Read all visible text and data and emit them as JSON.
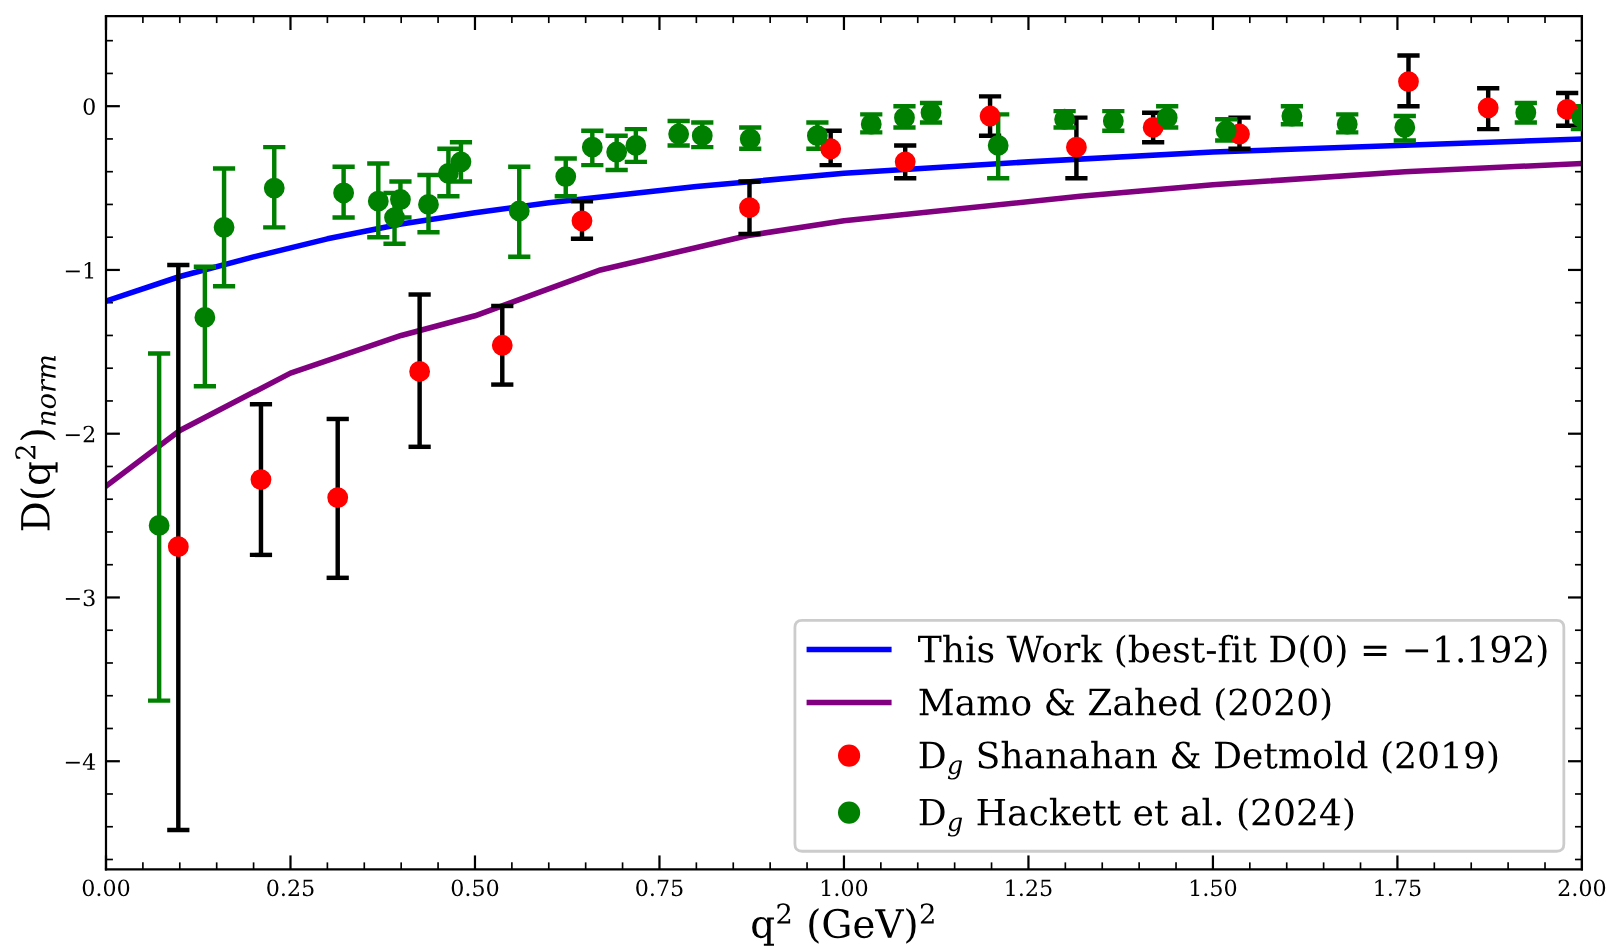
{
  "chart_data": {
    "type": "scatter",
    "xlabel": "q$^{2}$ (GeV)$^{2}$",
    "ylabel": "D(q$^{2}$)$_{norm}$",
    "xlim": [
      0,
      2
    ],
    "ylim": [
      -4.66,
      0.55
    ],
    "xticks": [
      {
        "value": 0,
        "label": "0.00"
      },
      {
        "value": 0.25,
        "label": "0.25"
      },
      {
        "value": 0.5,
        "label": "0.50"
      },
      {
        "value": 0.75,
        "label": "0.75"
      },
      {
        "value": 1,
        "label": "1.00"
      },
      {
        "value": 1.25,
        "label": "1.25"
      },
      {
        "value": 1.5,
        "label": "1.50"
      },
      {
        "value": 1.75,
        "label": "1.75"
      },
      {
        "value": 2,
        "label": "2.00"
      }
    ],
    "yticks": [
      {
        "value": -4,
        "label": "−4"
      },
      {
        "value": -3,
        "label": "−3"
      },
      {
        "value": -2,
        "label": "−2"
      },
      {
        "value": -1,
        "label": "−1"
      },
      0
    ],
    "grid": false,
    "legend": "bottom right",
    "series": [
      {
        "name": "This Work (best-fit D(0) = −1.192)",
        "type": "line",
        "color": "#0000ff",
        "x": [
          0,
          0.1,
          0.2,
          0.3,
          0.4,
          0.5,
          0.6,
          0.8,
          1.0,
          1.25,
          1.5,
          1.75,
          2.0
        ],
        "values": [
          -1.19,
          -1.04,
          -0.92,
          -0.81,
          -0.72,
          -0.65,
          -0.59,
          -0.49,
          -0.41,
          -0.34,
          -0.28,
          -0.24,
          -0.2
        ]
      },
      {
        "name": "Mamo & Zahed (2020)",
        "type": "line",
        "color": "#800080",
        "x": [
          0,
          0.1,
          0.25,
          0.4,
          0.5,
          0.67,
          0.87,
          1.0,
          1.32,
          1.5,
          1.76,
          2.0
        ],
        "values": [
          -2.32,
          -1.98,
          -1.63,
          -1.4,
          -1.28,
          -1.0,
          -0.79,
          -0.7,
          -0.55,
          -0.48,
          -0.4,
          -0.35
        ]
      },
      {
        "name": "D$_{g}$ Shanahan & Detmold (2019)",
        "marker": "circle",
        "color": "#ff0000",
        "x": [
          0.098,
          0.21,
          0.314,
          0.425,
          0.537,
          0.645,
          0.872,
          0.982,
          1.083,
          1.198,
          1.315,
          1.419,
          1.536,
          1.765,
          1.873,
          1.98
        ],
        "values": [
          -2.69,
          -2.28,
          -2.39,
          -1.62,
          -1.46,
          -0.7,
          -0.62,
          -0.26,
          -0.34,
          -0.06,
          -0.25,
          -0.13,
          -0.17,
          0.15,
          -0.01,
          -0.02
        ],
        "errors": [
          [
            -4.42,
            -0.97
          ],
          [
            -2.74,
            -1.82
          ],
          [
            -2.88,
            -1.91
          ],
          [
            -2.08,
            -1.15
          ],
          [
            -1.7,
            -1.22
          ],
          [
            -0.81,
            -0.58
          ],
          [
            -0.78,
            -0.46
          ],
          [
            -0.36,
            -0.15
          ],
          [
            -0.44,
            -0.24
          ],
          [
            -0.18,
            0.06
          ],
          [
            -0.44,
            -0.07
          ],
          [
            -0.22,
            -0.04
          ],
          [
            -0.26,
            -0.07
          ],
          [
            0.0,
            0.31
          ],
          [
            -0.14,
            0.11
          ],
          [
            -0.12,
            0.08
          ]
        ]
      },
      {
        "name": "D$_{g}$ Hackett et al. (2024)",
        "marker": "circle",
        "color": "#008000",
        "x": [
          0.072,
          0.134,
          0.16,
          0.228,
          0.322,
          0.369,
          0.391,
          0.399,
          0.437,
          0.464,
          0.481,
          0.56,
          0.623,
          0.659,
          0.692,
          0.718,
          0.776,
          0.808,
          0.873,
          0.964,
          1.037,
          1.082,
          1.118,
          1.209,
          1.299,
          1.365,
          1.438,
          1.518,
          1.607,
          1.682,
          1.76,
          1.924,
          2.0
        ],
        "values": [
          -2.56,
          -1.29,
          -0.74,
          -0.5,
          -0.53,
          -0.58,
          -0.68,
          -0.57,
          -0.6,
          -0.41,
          -0.34,
          -0.64,
          -0.43,
          -0.25,
          -0.28,
          -0.24,
          -0.17,
          -0.18,
          -0.2,
          -0.18,
          -0.11,
          -0.07,
          -0.04,
          -0.24,
          -0.08,
          -0.09,
          -0.07,
          -0.15,
          -0.06,
          -0.11,
          -0.13,
          -0.04,
          -0.07
        ],
        "errors": [
          [
            -3.63,
            -1.51
          ],
          [
            -1.71,
            -0.98
          ],
          [
            -1.1,
            -0.38
          ],
          [
            -0.74,
            -0.25
          ],
          [
            -0.68,
            -0.37
          ],
          [
            -0.8,
            -0.35
          ],
          [
            -0.84,
            -0.53
          ],
          [
            -0.68,
            -0.46
          ],
          [
            -0.77,
            -0.42
          ],
          [
            -0.55,
            -0.26
          ],
          [
            -0.46,
            -0.22
          ],
          [
            -0.92,
            -0.37
          ],
          [
            -0.55,
            -0.32
          ],
          [
            -0.36,
            -0.15
          ],
          [
            -0.39,
            -0.18
          ],
          [
            -0.34,
            -0.14
          ],
          [
            -0.24,
            -0.09
          ],
          [
            -0.25,
            -0.1
          ],
          [
            -0.26,
            -0.13
          ],
          [
            -0.26,
            -0.1
          ],
          [
            -0.16,
            -0.05
          ],
          [
            -0.13,
            0.0
          ],
          [
            -0.1,
            0.02
          ],
          [
            -0.44,
            -0.05
          ],
          [
            -0.13,
            -0.03
          ],
          [
            -0.15,
            -0.03
          ],
          [
            -0.13,
            0.0
          ],
          [
            -0.21,
            -0.08
          ],
          [
            -0.11,
            0.0
          ],
          [
            -0.16,
            -0.05
          ],
          [
            -0.21,
            -0.06
          ],
          [
            -0.1,
            0.02
          ],
          [
            -0.14,
            0.0
          ]
        ]
      }
    ]
  }
}
